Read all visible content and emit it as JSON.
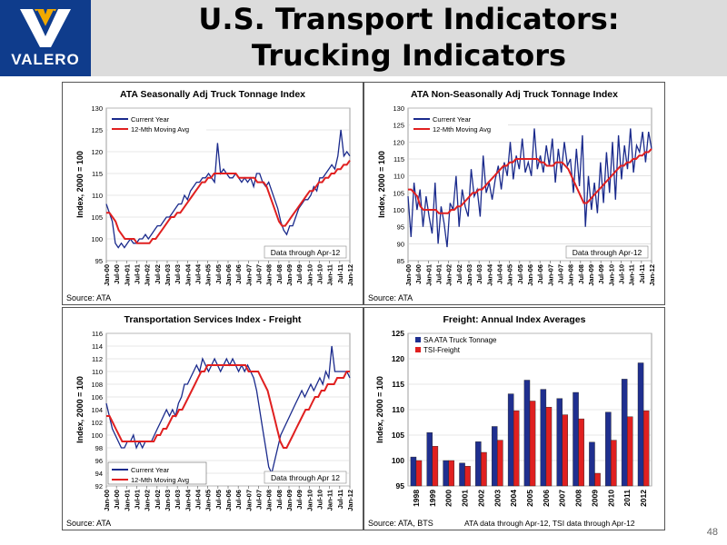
{
  "slide": {
    "title_line1": "U.S. Transport Indicators:",
    "title_line2": "Trucking Indicators",
    "logo_text": "VALERO",
    "page_number": "48"
  },
  "time_labels": [
    "Jan-00",
    "Jul-00",
    "Jan-01",
    "Jul-01",
    "Jan-02",
    "Jul-02",
    "Jan-03",
    "Jul-03",
    "Jan-04",
    "Jul-04",
    "Jan-05",
    "Jul-05",
    "Jan-06",
    "Jul-06",
    "Jan-07",
    "Jul-07",
    "Jan-08",
    "Jul-08",
    "Jan-09",
    "Jul-09",
    "Jan-10",
    "Jul-10",
    "Jan-11",
    "Jul-11",
    "Jan-12"
  ],
  "colors": {
    "current": "#1a2a8c",
    "moving_avg": "#e02020",
    "sa_bar": "#1f2f8f",
    "tsi_bar": "#e02020",
    "logo_bg": "#0f3c8c"
  },
  "chart_data": [
    {
      "type": "line",
      "title": "ATA Seasonally Adj Truck Tonnage Index",
      "ylabel": "Index, 2000 = 100",
      "ylim": [
        95,
        130
      ],
      "yticks": [
        95,
        100,
        105,
        110,
        115,
        120,
        125,
        130
      ],
      "annotation": "Data through Apr-12",
      "source": "Source: ATA",
      "legend": "top-left",
      "series": [
        {
          "name": "Current Year",
          "values": [
            108,
            106,
            104,
            99,
            98,
            99,
            98,
            99,
            100,
            99,
            99,
            100,
            100,
            101,
            100,
            101,
            102,
            103,
            103,
            104,
            105,
            105,
            106,
            107,
            108,
            108,
            110,
            109,
            111,
            112,
            113,
            113,
            114,
            114,
            115,
            114,
            113,
            122,
            115,
            116,
            115,
            114,
            114,
            115,
            114,
            113,
            114,
            113,
            114,
            112,
            115,
            115,
            113,
            112,
            113,
            111,
            109,
            107,
            104,
            102,
            101,
            103,
            103,
            105,
            107,
            108,
            109,
            109,
            110,
            112,
            111,
            114,
            114,
            115,
            116,
            117,
            116,
            119,
            125,
            119,
            120,
            119
          ]
        },
        {
          "name": "12-Mth Moving Avg",
          "values": [
            106,
            106,
            105,
            104,
            102,
            101,
            100,
            100,
            100,
            100,
            99,
            99,
            99,
            99,
            99,
            100,
            100,
            101,
            102,
            103,
            104,
            105,
            105,
            106,
            106,
            107,
            108,
            109,
            110,
            111,
            112,
            113,
            113,
            114,
            114,
            115,
            115,
            115,
            115,
            115,
            115,
            115,
            115,
            114,
            114,
            114,
            114,
            114,
            114,
            113,
            113,
            113,
            112,
            110,
            108,
            106,
            104,
            103,
            103,
            104,
            105,
            106,
            107,
            108,
            109,
            110,
            111,
            111,
            112,
            113,
            113,
            114,
            114,
            115,
            115,
            116,
            116,
            117,
            117,
            118
          ]
        }
      ]
    },
    {
      "type": "line",
      "title": "ATA Non-Seasonally Adj Truck Tonnage Index",
      "ylabel": "Index, 2000 = 100",
      "ylim": [
        85,
        130
      ],
      "yticks": [
        85,
        90,
        95,
        100,
        105,
        110,
        115,
        120,
        125,
        130
      ],
      "annotation": "Data through Apr-12",
      "source": "Source: ATA",
      "legend": "top-left",
      "series": [
        {
          "name": "Current Year",
          "values": [
            104,
            92,
            108,
            100,
            106,
            95,
            104,
            98,
            93,
            108,
            90,
            101,
            96,
            89,
            102,
            100,
            110,
            95,
            106,
            101,
            98,
            112,
            104,
            106,
            98,
            116,
            105,
            108,
            103,
            109,
            113,
            106,
            114,
            110,
            120,
            109,
            116,
            112,
            121,
            111,
            114,
            110,
            124,
            112,
            116,
            111,
            119,
            113,
            121,
            108,
            118,
            111,
            120,
            113,
            115,
            105,
            118,
            107,
            122,
            95,
            110,
            100,
            108,
            99,
            114,
            102,
            117,
            105,
            120,
            103,
            122,
            109,
            119,
            112,
            124,
            111,
            119,
            117,
            123,
            114,
            123,
            118
          ]
        },
        {
          "name": "12-Mth Moving Avg",
          "values": [
            106,
            106,
            105,
            104,
            101,
            100,
            100,
            100,
            100,
            100,
            99,
            99,
            99,
            99,
            100,
            100,
            101,
            101,
            102,
            103,
            104,
            105,
            105,
            106,
            106,
            107,
            108,
            109,
            110,
            111,
            112,
            113,
            113,
            114,
            114,
            115,
            115,
            115,
            115,
            115,
            115,
            115,
            115,
            114,
            114,
            113,
            113,
            113,
            114,
            114,
            114,
            113,
            112,
            110,
            108,
            106,
            104,
            102,
            102,
            103,
            104,
            105,
            106,
            107,
            108,
            109,
            110,
            111,
            112,
            113,
            113,
            114,
            114,
            115,
            115,
            116,
            116,
            117,
            117,
            118
          ]
        }
      ]
    },
    {
      "type": "line",
      "title": "Transportation Services Index - Freight",
      "ylabel": "Index, 2000 = 100",
      "ylim": [
        92,
        116
      ],
      "yticks": [
        92,
        94,
        96,
        98,
        100,
        102,
        104,
        106,
        108,
        110,
        112,
        114,
        116
      ],
      "annotation": "Data through Apr 12",
      "source": "Source: ATA",
      "legend": "bottom-left",
      "series": [
        {
          "name": "Current Year",
          "values": [
            105,
            103,
            101,
            100,
            99,
            98,
            98,
            99,
            99,
            100,
            98,
            99,
            98,
            99,
            99,
            99,
            100,
            101,
            102,
            103,
            104,
            103,
            104,
            103,
            105,
            106,
            108,
            108,
            109,
            110,
            111,
            110,
            112,
            111,
            110,
            111,
            112,
            111,
            110,
            111,
            112,
            111,
            112,
            111,
            110,
            111,
            110,
            111,
            110,
            109,
            107,
            104,
            101,
            98,
            95,
            94,
            96,
            98,
            100,
            101,
            102,
            103,
            104,
            105,
            106,
            107,
            106,
            107,
            108,
            107,
            108,
            109,
            108,
            110,
            109,
            114,
            110,
            110,
            110,
            110,
            110,
            109
          ]
        },
        {
          "name": "12-Mth Moving Avg",
          "values": [
            103,
            103,
            102,
            101,
            100,
            99,
            99,
            99,
            99,
            99,
            99,
            99,
            99,
            99,
            99,
            99,
            100,
            100,
            101,
            101,
            102,
            103,
            103,
            104,
            104,
            105,
            106,
            107,
            108,
            109,
            110,
            110,
            111,
            111,
            111,
            111,
            111,
            111,
            111,
            111,
            111,
            111,
            111,
            111,
            111,
            110,
            110,
            110,
            110,
            109,
            108,
            107,
            105,
            103,
            101,
            99,
            98,
            98,
            99,
            100,
            101,
            102,
            103,
            104,
            104,
            105,
            106,
            106,
            107,
            107,
            108,
            108,
            108,
            109,
            109,
            109,
            110,
            110
          ]
        }
      ]
    },
    {
      "type": "bar",
      "title": "Freight: Annual Index Averages",
      "ylabel": "Index, 2000 = 100",
      "ylim": [
        95,
        125
      ],
      "yticks": [
        95,
        100,
        105,
        110,
        115,
        120,
        125
      ],
      "source": "Source: ATA, BTS",
      "footnote": "ATA data through Apr-12, TSI data through Apr-12",
      "legend": "top-left",
      "categories": [
        "1998",
        "1999",
        "2000",
        "2001",
        "2002",
        "2003",
        "2004",
        "2005",
        "2006",
        "2007",
        "2008",
        "2009",
        "2010",
        "2011",
        "2012"
      ],
      "series": [
        {
          "name": "SA ATA Truck Tonnage",
          "values": [
            100.7,
            105.5,
            100.0,
            99.5,
            103.7,
            106.7,
            113.1,
            115.8,
            114.0,
            112.2,
            113.4,
            103.6,
            109.5,
            116.0,
            119.2
          ]
        },
        {
          "name": "TSI-Freight",
          "values": [
            100.0,
            102.8,
            100.0,
            98.9,
            101.6,
            104.0,
            109.8,
            111.7,
            110.5,
            109.0,
            108.2,
            97.5,
            104.0,
            108.6,
            109.8
          ]
        }
      ]
    }
  ]
}
